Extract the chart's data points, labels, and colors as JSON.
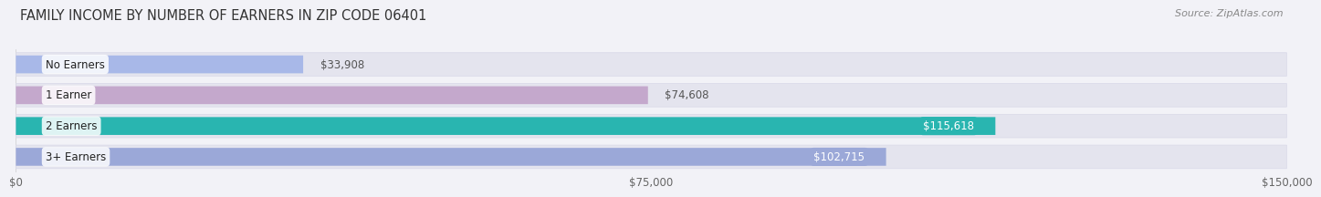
{
  "title": "FAMILY INCOME BY NUMBER OF EARNERS IN ZIP CODE 06401",
  "source": "Source: ZipAtlas.com",
  "categories": [
    "No Earners",
    "1 Earner",
    "2 Earners",
    "3+ Earners"
  ],
  "values": [
    33908,
    74608,
    115618,
    102715
  ],
  "bar_colors": [
    "#a8b8e8",
    "#c4a8cc",
    "#29b5b0",
    "#9ba8d8"
  ],
  "bar_label_colors": [
    "#555555",
    "#555555",
    "#ffffff",
    "#ffffff"
  ],
  "value_label_inside": [
    false,
    false,
    true,
    true
  ],
  "xlim": [
    0,
    150000
  ],
  "xticks": [
    0,
    75000,
    150000
  ],
  "xtick_labels": [
    "$0",
    "$75,000",
    "$150,000"
  ],
  "background_color": "#f2f2f7",
  "bar_bg_color": "#e4e4ee",
  "bar_bg_border_color": "#d8d8e8",
  "title_fontsize": 10.5,
  "label_fontsize": 8.5,
  "value_fontsize": 8.5,
  "source_fontsize": 8.0
}
